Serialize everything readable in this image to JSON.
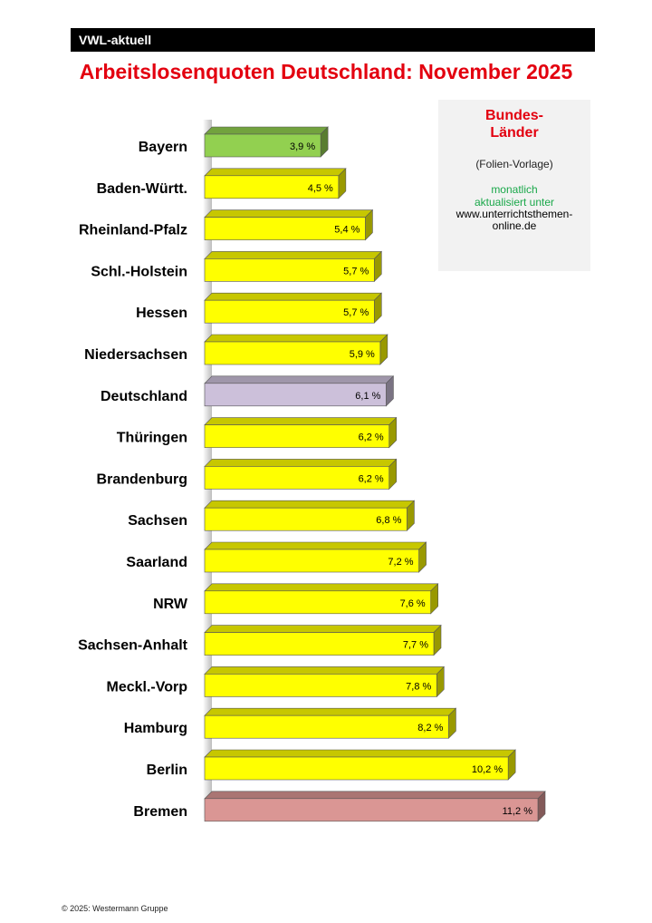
{
  "header": {
    "label": "VWL-aktuell"
  },
  "chart_data": {
    "type": "bar",
    "orientation": "horizontal",
    "title": "Arbeitslosenquoten Deutschland: November 2025",
    "categories": [
      "Bayern",
      "Baden-Württ.",
      "Rheinland-Pfalz",
      "Schl.-Holstein",
      "Hessen",
      "Niedersachsen",
      "Deutschland",
      "Thüringen",
      "Brandenburg",
      "Sachsen",
      "Saarland",
      "NRW",
      "Sachsen-Anhalt",
      "Meckl.-Vorp",
      "Hamburg",
      "Berlin",
      "Bremen"
    ],
    "values": [
      3.9,
      4.5,
      5.4,
      5.7,
      5.7,
      5.9,
      6.1,
      6.2,
      6.2,
      6.8,
      7.2,
      7.6,
      7.7,
      7.8,
      8.2,
      10.2,
      11.2
    ],
    "value_labels": [
      "3,9 %",
      "4,5 %",
      "5,4 %",
      "5,7 %",
      "5,7 %",
      "5,9 %",
      "6,1 %",
      "6,2 %",
      "6,2 %",
      "6,8 %",
      "7,2 %",
      "7,6 %",
      "7,7 %",
      "7,8 %",
      "8,2 %",
      "10,2 %",
      "11,2 %"
    ],
    "colors": [
      "#92d050",
      "#ffff00",
      "#ffff00",
      "#ffff00",
      "#ffff00",
      "#ffff00",
      "#ccc0da",
      "#ffff00",
      "#ffff00",
      "#ffff00",
      "#ffff00",
      "#ffff00",
      "#ffff00",
      "#ffff00",
      "#ffff00",
      "#ffff00",
      "#da9694"
    ],
    "xlim": [
      0,
      11.2
    ],
    "style": "3d-bars"
  },
  "info_box": {
    "heading_line1": "Bundes-",
    "heading_line2": "Länder",
    "subtitle": "(Folien-Vorlage)",
    "update_line1": "monatlich",
    "update_line2": "aktualisiert unter",
    "url_line1": "www.unterrichtsthemen-",
    "url_line2": "online.de"
  },
  "footer": {
    "copyright": "© 2025: Westermann Gruppe"
  }
}
